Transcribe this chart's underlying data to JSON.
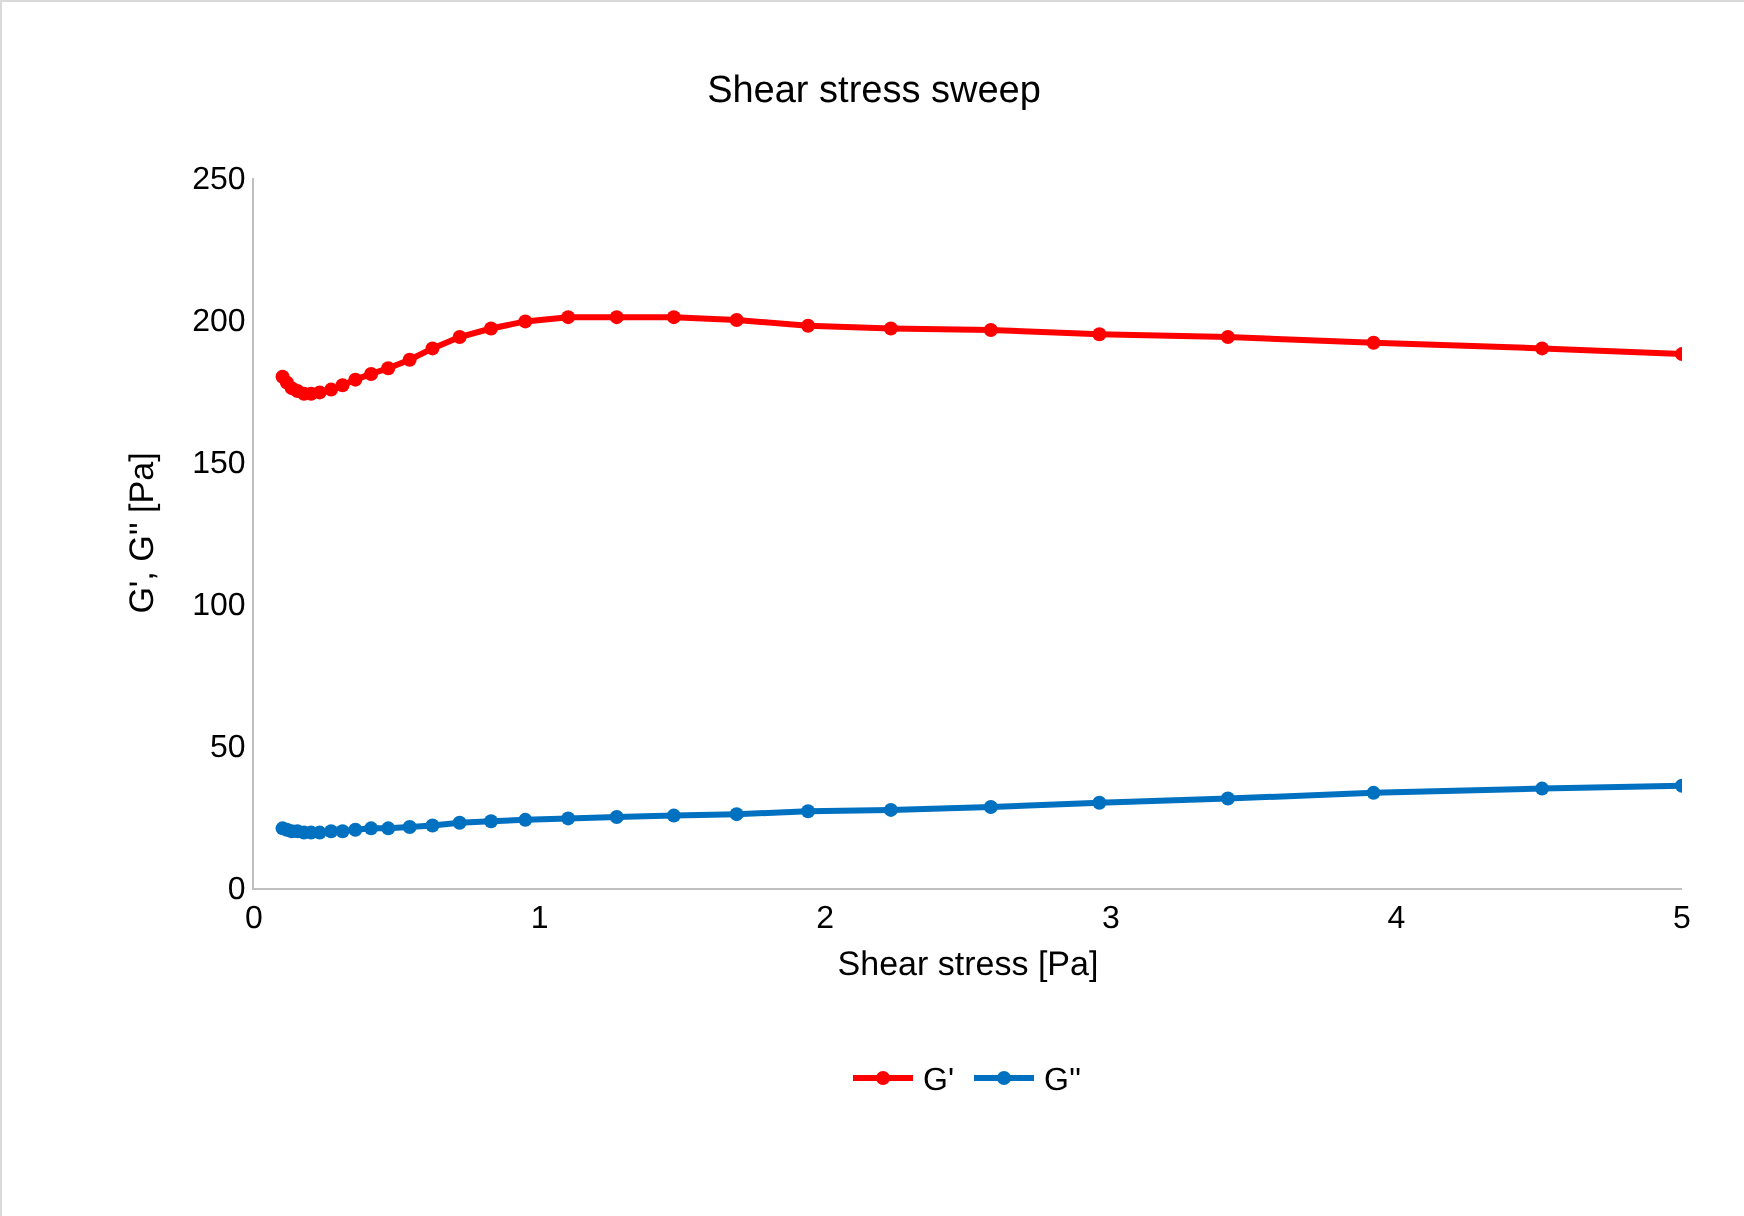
{
  "chart_data": {
    "type": "line",
    "title": "Shear stress sweep",
    "xlabel": "Shear stress [Pa]",
    "ylabel": "G', G'' [Pa]",
    "x": [
      0.1,
      0.115,
      0.132,
      0.152,
      0.175,
      0.2,
      0.23,
      0.27,
      0.31,
      0.355,
      0.41,
      0.47,
      0.545,
      0.625,
      0.72,
      0.83,
      0.95,
      1.1,
      1.27,
      1.47,
      1.69,
      1.94,
      2.23,
      2.58,
      2.96,
      3.41,
      3.92,
      4.51,
      5
    ],
    "series": [
      {
        "name": "G'",
        "color": "#ff0000",
        "values": [
          180,
          178,
          176,
          175,
          174,
          174,
          174.5,
          175.5,
          177,
          179,
          181,
          183,
          186,
          190,
          194,
          197,
          199.5,
          201,
          201,
          201,
          200,
          198,
          197,
          196.5,
          195,
          194,
          192,
          190,
          188
        ]
      },
      {
        "name": "G''",
        "color": "#0070c0",
        "values": [
          21,
          20.5,
          20,
          20,
          19.5,
          19.5,
          19.5,
          20,
          20,
          20.5,
          21,
          21,
          21.5,
          22,
          23,
          23.5,
          24,
          24.5,
          25,
          25.5,
          26,
          27,
          27.5,
          28.5,
          30,
          31.5,
          33.5,
          35,
          36
        ]
      }
    ],
    "xlim": [
      0,
      5
    ],
    "xticks": [
      0,
      1,
      2,
      3,
      4,
      5
    ],
    "ylim": [
      0,
      250
    ],
    "yticks": [
      0,
      50,
      100,
      150,
      200,
      250
    ],
    "grid": false,
    "legend": "bottom",
    "marker": "circle",
    "line_style": "solid"
  }
}
